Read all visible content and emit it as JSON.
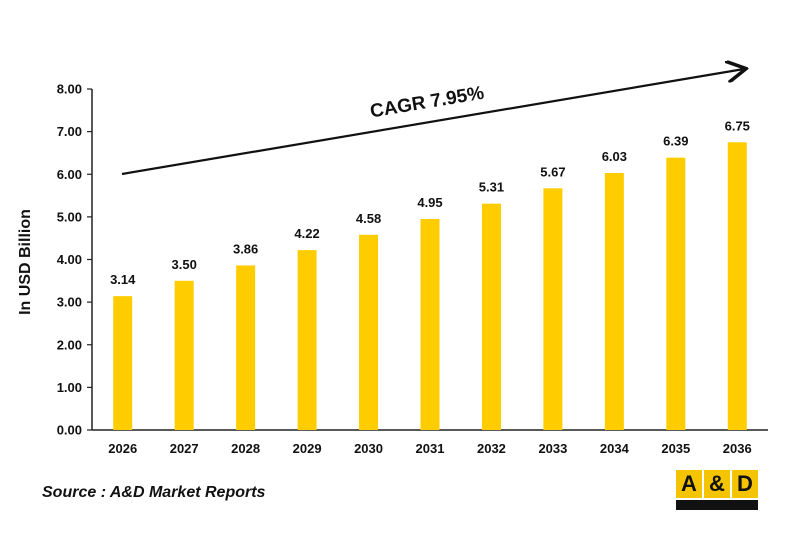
{
  "chart_data": {
    "type": "bar",
    "categories": [
      "2026",
      "2027",
      "2028",
      "2029",
      "2030",
      "2031",
      "2032",
      "2033",
      "2034",
      "2035",
      "2036"
    ],
    "values": [
      3.14,
      3.5,
      3.86,
      4.22,
      4.58,
      4.95,
      5.31,
      5.67,
      6.03,
      6.39,
      6.75
    ],
    "data_labels": [
      "3.14",
      "3.50",
      "3.86",
      "4.22",
      "4.58",
      "4.95",
      "5.31",
      "5.67",
      "6.03",
      "6.39",
      "6.75"
    ],
    "ylabel": "In USD Billion",
    "xlabel": "",
    "ylim": [
      0,
      8
    ],
    "yticks": [
      "0.00",
      "1.00",
      "2.00",
      "3.00",
      "4.00",
      "5.00",
      "6.00",
      "7.00",
      "8.00"
    ],
    "grid": false,
    "bar_color": "#ffcc00",
    "annotation": "CAGR 7.95%"
  },
  "source": "Source : A&D Market Reports",
  "logo": {
    "left": "A",
    "amp": "&",
    "right": "D"
  }
}
